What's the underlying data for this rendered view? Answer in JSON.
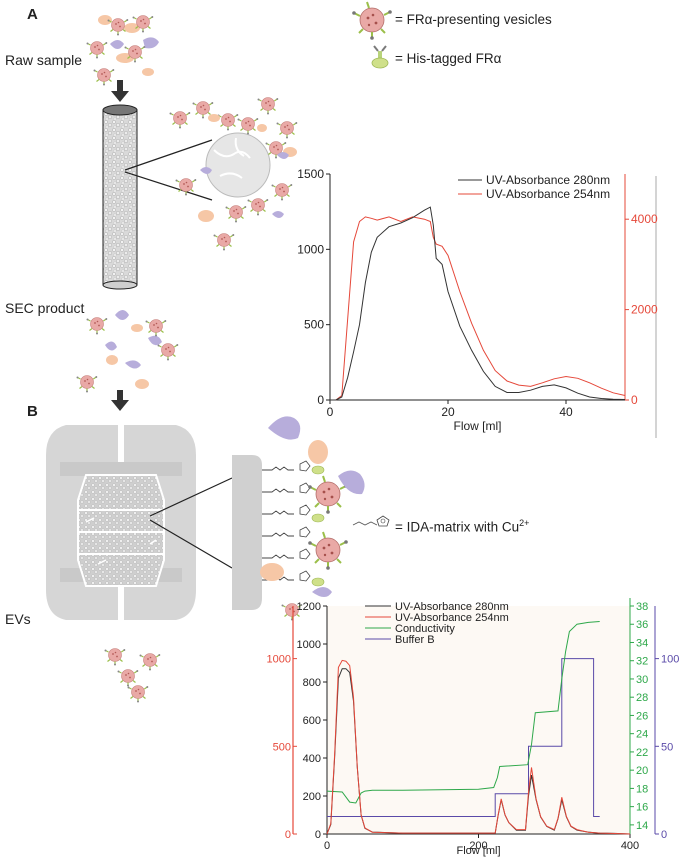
{
  "panel_a": {
    "letter": "A",
    "raw_sample": "Raw sample",
    "sec_product": "SEC product",
    "legend": {
      "vesicles": "= FRα-presenting vesicles",
      "his_tagged": "= His-tagged FRα"
    }
  },
  "panel_b": {
    "letter": "B",
    "evs": "EVs",
    "ida_prefix": "= IDA-matrix with Cu",
    "ida_sup": "2+"
  },
  "colors": {
    "uv280": "#333333",
    "uv254": "#e5483a",
    "conductivity": "#2ea84a",
    "buffer_b": "#5a4aa8",
    "vesicle_fill": "#e9a9a6",
    "protein_green": "#cfe08a",
    "blob_purple": "#b7addb",
    "blob_orange": "#f6c7a6"
  },
  "chart_data": [
    {
      "type": "line",
      "xlabel": "Flow [ml]",
      "xlim": [
        0,
        50
      ],
      "x_ticks": [
        "0",
        "20",
        "40"
      ],
      "y_left": {
        "lim": [
          0,
          1500
        ],
        "ticks": [
          "0",
          "500",
          "1000",
          "1500"
        ]
      },
      "y_right": {
        "lim": [
          0,
          5000
        ],
        "ticks": [
          "0",
          "2000",
          "4000"
        ]
      },
      "legend_position": "top-right",
      "series": [
        {
          "name": "UV-Absorbance 280nm",
          "axis": "left",
          "x": [
            0,
            1,
            2,
            3,
            4,
            5,
            6,
            7,
            8,
            10,
            12,
            14,
            16,
            17,
            17.5,
            18,
            19,
            20,
            22,
            24,
            26,
            28,
            30,
            32,
            34,
            36,
            38,
            40,
            42,
            44,
            46,
            48,
            50
          ],
          "y": [
            0,
            0,
            20,
            150,
            320,
            500,
            780,
            980,
            1080,
            1150,
            1175,
            1210,
            1260,
            1280,
            1160,
            940,
            900,
            720,
            490,
            330,
            190,
            90,
            50,
            50,
            65,
            90,
            100,
            80,
            45,
            20,
            10,
            5,
            3
          ]
        },
        {
          "name": "UV-Absorbance 254nm",
          "axis": "right",
          "x": [
            0,
            1,
            2,
            3,
            4,
            5,
            6,
            7,
            8,
            10,
            12,
            14,
            16,
            17,
            17.5,
            18,
            19,
            20,
            22,
            24,
            26,
            28,
            30,
            32,
            34,
            36,
            38,
            40,
            42,
            44,
            46,
            48,
            50
          ],
          "y": [
            0,
            0,
            100,
            1800,
            3500,
            3950,
            4050,
            4020,
            3980,
            4050,
            3950,
            4050,
            4000,
            3950,
            3600,
            3450,
            3400,
            3200,
            2400,
            1700,
            1100,
            650,
            420,
            330,
            300,
            380,
            470,
            520,
            480,
            380,
            260,
            160,
            100
          ]
        }
      ]
    },
    {
      "type": "line",
      "xlabel": "Flow [ml]",
      "xlim": [
        0,
        400
      ],
      "x_ticks": [
        "0",
        "200",
        "400"
      ],
      "y_left_280": {
        "lim": [
          0,
          1200
        ],
        "ticks": [
          "0",
          "200",
          "400",
          "600",
          "800",
          "1000",
          "1200"
        ]
      },
      "y_left_254": {
        "lim": [
          0,
          1300
        ],
        "ticks": [
          "0",
          "500",
          "1000"
        ]
      },
      "y_conductivity": {
        "lim": [
          13,
          38
        ],
        "ticks": [
          "14",
          "16",
          "18",
          "20",
          "22",
          "24",
          "26",
          "28",
          "30",
          "32",
          "34",
          "36",
          "38"
        ]
      },
      "y_buffer": {
        "lim": [
          0,
          130
        ],
        "ticks": [
          "0",
          "50",
          "100"
        ]
      },
      "legend_position": "top-right",
      "series": [
        {
          "name": "UV-Absorbance 280nm",
          "axis": "y_left_280",
          "x": [
            0,
            5,
            10,
            15,
            20,
            25,
            30,
            35,
            40,
            45,
            50,
            60,
            100,
            200,
            222,
            226,
            230,
            235,
            240,
            250,
            262,
            266,
            270,
            276,
            282,
            290,
            300,
            305,
            310,
            316,
            322,
            330,
            345,
            360,
            380,
            400
          ],
          "y": [
            0,
            50,
            400,
            820,
            870,
            870,
            850,
            700,
            350,
            100,
            30,
            10,
            5,
            5,
            5,
            100,
            180,
            100,
            60,
            20,
            20,
            200,
            310,
            180,
            90,
            40,
            20,
            80,
            180,
            90,
            40,
            20,
            10,
            5,
            3,
            0
          ]
        },
        {
          "name": "UV-Absorbance 254nm",
          "axis": "y_left_254",
          "x": [
            0,
            5,
            10,
            15,
            20,
            25,
            30,
            35,
            40,
            45,
            50,
            60,
            100,
            200,
            222,
            226,
            230,
            235,
            240,
            250,
            262,
            266,
            270,
            276,
            282,
            290,
            300,
            305,
            310,
            316,
            322,
            330,
            345,
            360,
            380,
            400
          ],
          "y": [
            0,
            60,
            450,
            950,
            990,
            985,
            960,
            780,
            380,
            110,
            35,
            10,
            5,
            5,
            5,
            110,
            200,
            110,
            65,
            25,
            25,
            240,
            380,
            200,
            100,
            45,
            25,
            90,
            210,
            100,
            45,
            25,
            10,
            5,
            3,
            0
          ]
        },
        {
          "name": "Conductivity",
          "axis": "y_conductivity",
          "x": [
            0,
            20,
            30,
            38,
            45,
            50,
            60,
            100,
            200,
            220,
            225,
            228,
            265,
            270,
            275,
            305,
            310,
            315,
            320,
            330,
            345,
            360
          ],
          "y": [
            17.7,
            17.6,
            16.5,
            16.4,
            17.5,
            17.7,
            17.8,
            17.8,
            17.9,
            18.1,
            19.2,
            20.4,
            20.6,
            22.8,
            26.3,
            26.5,
            30.0,
            33.0,
            35.2,
            36.0,
            36.2,
            36.3
          ]
        },
        {
          "name": "Buffer B",
          "axis": "y_buffer",
          "x": [
            0,
            222,
            222,
            266,
            266,
            310,
            310,
            352,
            352,
            360
          ],
          "y": [
            10,
            10,
            23,
            23,
            50,
            50,
            100,
            100,
            10,
            10
          ]
        }
      ]
    }
  ]
}
